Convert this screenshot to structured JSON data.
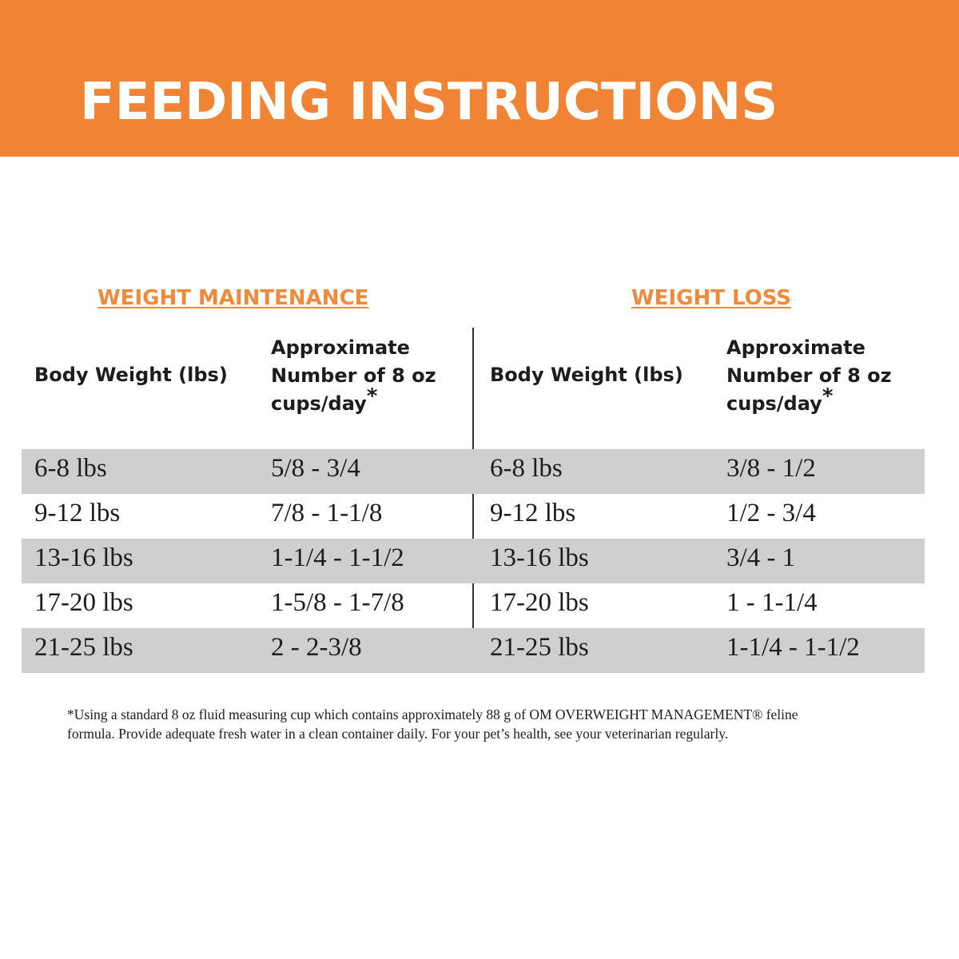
{
  "banner": {
    "title": "FEEDING INSTRUCTIONS"
  },
  "sections": {
    "maintenance": {
      "title": "WEIGHT MAINTENANCE",
      "weight_header": "Body Weight (lbs)",
      "cups_header": "Approximate Number of 8 oz cups/day",
      "cups_marker": "*"
    },
    "loss": {
      "title": "WEIGHT LOSS",
      "weight_header": "Body Weight (lbs)",
      "cups_header": "Approximate Number of 8 oz cups/day",
      "cups_marker": "*"
    }
  },
  "rows": [
    {
      "maint_weight": "6-8 lbs",
      "maint_cups": "5/8 - 3/4",
      "loss_weight": "6-8 lbs",
      "loss_cups": "3/8 - 1/2"
    },
    {
      "maint_weight": "9-12 lbs",
      "maint_cups": "7/8 - 1-1/8",
      "loss_weight": "9-12 lbs",
      "loss_cups": "1/2 - 3/4"
    },
    {
      "maint_weight": "13-16 lbs",
      "maint_cups": "1-1/4 - 1-1/2",
      "loss_weight": "13-16 lbs",
      "loss_cups": "3/4 - 1"
    },
    {
      "maint_weight": "17-20 lbs",
      "maint_cups": "1-5/8 - 1-7/8",
      "loss_weight": "17-20 lbs",
      "loss_cups": "1 - 1-1/4"
    },
    {
      "maint_weight": "21-25 lbs",
      "maint_cups": "2 - 2-3/8",
      "loss_weight": "21-25 lbs",
      "loss_cups": "1-1/4 - 1-1/2"
    }
  ],
  "footnote": {
    "line1": "*Using a standard 8 oz fluid measuring cup which contains approximately 88 g of OM OVERWEIGHT MANAGEMENT® feline",
    "line2": "formula. Provide adequate fresh water in a clean container daily. For your pet’s health, see your veterinarian regularly."
  },
  "colors": {
    "banner": "#f08434",
    "section_title": "#ef8a3c",
    "row_shade": "#cfcfcf",
    "text": "#1d1d1d"
  }
}
